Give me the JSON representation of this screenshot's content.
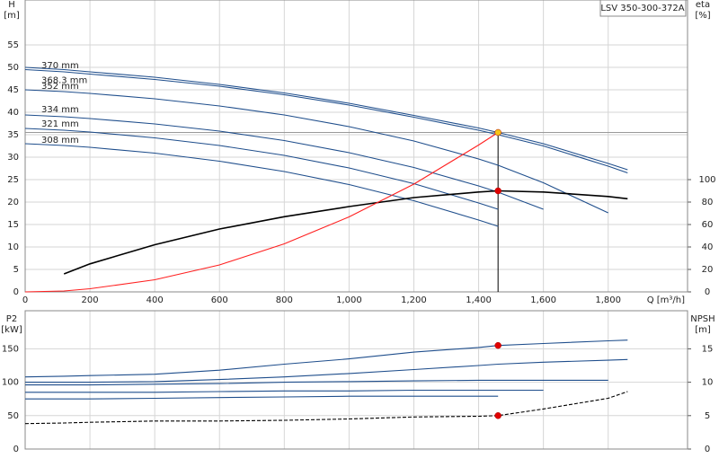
{
  "chart_data": [
    {
      "type": "line",
      "title": "LSV 350-300-372A",
      "ylabel": "H",
      "yunit": "[m]",
      "y2label": "eta",
      "y2unit": "[%]",
      "xlabel": "Q [m³/h]",
      "x": [
        0,
        120,
        200,
        400,
        600,
        800,
        1000,
        1200,
        1400,
        1460,
        1600,
        1800,
        1860
      ],
      "xlim": [
        0,
        2045
      ],
      "xticks": [
        0,
        200,
        400,
        600,
        800,
        {
          "value": 1000,
          "label": "1,000"
        },
        {
          "value": 1200,
          "label": "1,200"
        },
        {
          "value": 1400,
          "label": "1,400"
        },
        {
          "value": 1600,
          "label": "1,600"
        },
        {
          "value": 1800,
          "label": "1,800"
        }
      ],
      "ylim": [
        0,
        65
      ],
      "yticks": [
        0,
        5,
        10,
        15,
        20,
        25,
        30,
        35,
        40,
        45,
        50,
        55
      ],
      "y2lim": [
        0,
        260
      ],
      "y2ticks": [
        0,
        20,
        40,
        60,
        80,
        100
      ],
      "grid": true,
      "series": [
        {
          "name": "370 mm",
          "color": "#1f4e8c",
          "values": [
            50,
            49.5,
            49,
            47.8,
            46.2,
            44.3,
            42,
            39.3,
            36.5,
            35.5,
            33,
            28.6,
            27.2
          ]
        },
        {
          "name": "368.3 mm",
          "color": "#1f4e8c",
          "values": [
            49.5,
            49,
            48.5,
            47.3,
            45.8,
            43.9,
            41.6,
            38.9,
            36,
            35,
            32.5,
            28,
            26.5
          ]
        },
        {
          "name": "352 mm",
          "color": "#1f4e8c",
          "values": [
            45,
            44.6,
            44.2,
            43,
            41.4,
            39.4,
            36.8,
            33.6,
            29.6,
            28.2,
            24.3,
            17.6,
            null
          ]
        },
        {
          "name": "334 mm",
          "color": "#1f4e8c",
          "values": [
            39.4,
            39,
            38.6,
            37.4,
            35.8,
            33.7,
            31,
            27.7,
            23.6,
            22.2,
            18.4,
            null,
            null
          ]
        },
        {
          "name": "321 mm",
          "color": "#1f4e8c",
          "values": [
            36.4,
            36,
            35.6,
            34.3,
            32.6,
            30.4,
            27.6,
            24.1,
            19.8,
            18.4,
            null,
            null,
            null
          ]
        },
        {
          "name": "308 mm",
          "color": "#1f4e8c",
          "values": [
            33,
            32.6,
            32.2,
            30.9,
            29.1,
            26.8,
            23.9,
            20.3,
            16,
            14.6,
            null,
            null,
            null
          ]
        },
        {
          "color": "#000000",
          "axis": "y2",
          "values": [
            null,
            16,
            25,
            42,
            56,
            67,
            76,
            84,
            89,
            90,
            89,
            85,
            83
          ]
        },
        {
          "color": "#ff2020",
          "values": [
            0,
            0.2,
            0.7,
            2.7,
            6,
            10.7,
            16.7,
            24,
            32.7,
            35.5,
            null,
            null,
            null
          ]
        }
      ],
      "points": [
        {
          "x": 1460,
          "y": 35.5,
          "color": "#f5c518"
        },
        {
          "x": 1460,
          "y": 90,
          "axis": "y2",
          "color": "#e00000"
        }
      ]
    },
    {
      "type": "line",
      "ylabel": "P2",
      "yunit": "[kW]",
      "y2label": "NPSH",
      "y2unit": "[m]",
      "x": [
        0,
        120,
        200,
        400,
        600,
        800,
        1000,
        1200,
        1400,
        1460,
        1600,
        1800,
        1860
      ],
      "xlim": [
        0,
        2045
      ],
      "ylim": [
        0,
        207
      ],
      "yticks": [
        0,
        50,
        100,
        150
      ],
      "y2lim": [
        0,
        20.7
      ],
      "y2ticks": [
        0,
        5,
        10,
        15
      ],
      "grid": true,
      "series": [
        {
          "color": "#1f4e8c",
          "values": [
            108,
            109,
            110,
            112,
            118,
            127,
            135,
            145,
            152,
            155,
            158,
            162,
            163
          ]
        },
        {
          "color": "#1f4e8c",
          "values": [
            100,
            100,
            100,
            101,
            104,
            108,
            113,
            119,
            125,
            127,
            130,
            133,
            134
          ]
        },
        {
          "color": "#1f4e8c",
          "values": [
            96,
            96,
            96,
            97,
            98,
            100,
            101,
            102,
            103,
            103,
            103,
            103,
            null
          ]
        },
        {
          "color": "#1f4e8c",
          "values": [
            85,
            85,
            85,
            85,
            86,
            87,
            87,
            88,
            88,
            88,
            88,
            null,
            null
          ]
        },
        {
          "color": "#1f4e8c",
          "values": [
            75,
            75,
            75,
            76,
            77,
            78,
            79,
            79,
            79,
            79,
            null,
            null,
            null
          ]
        },
        {
          "color": "#000000",
          "axis": "y2",
          "dashed": true,
          "values": [
            3.8,
            3.9,
            4,
            4.2,
            4.2,
            4.3,
            4.5,
            4.8,
            4.9,
            5,
            6,
            7.6,
            8.6
          ]
        }
      ],
      "points": [
        {
          "x": 1460,
          "y": 155,
          "color": "#e00000"
        },
        {
          "x": 1460,
          "y": 5,
          "axis": "y2",
          "color": "#e00000"
        }
      ]
    }
  ]
}
